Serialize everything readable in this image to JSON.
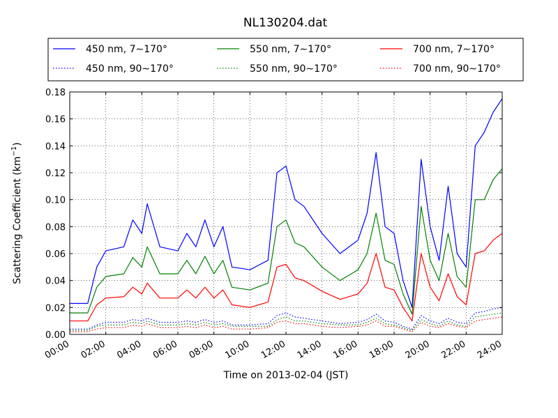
{
  "chart_data": {
    "type": "line",
    "title": "NL130204.dat",
    "xlabel": "Time on 2013-02-04 (JST)",
    "ylabel": "Scattering Coefficient (km",
    "ylabel_sup": "−1",
    "ylabel_close": ")",
    "x_unit": "hour",
    "xlim": [
      0,
      24
    ],
    "ylim": [
      0,
      0.18
    ],
    "grid": true,
    "legend_position": "top",
    "x_ticks": [
      {
        "value": 0,
        "label": "00:00"
      },
      {
        "value": 2,
        "label": "02:00"
      },
      {
        "value": 4,
        "label": "04:00"
      },
      {
        "value": 6,
        "label": "06:00"
      },
      {
        "value": 8,
        "label": "08:00"
      },
      {
        "value": 10,
        "label": "10:00"
      },
      {
        "value": 12,
        "label": "12:00"
      },
      {
        "value": 14,
        "label": "14:00"
      },
      {
        "value": 16,
        "label": "16:00"
      },
      {
        "value": 18,
        "label": "18:00"
      },
      {
        "value": 20,
        "label": "20:00"
      },
      {
        "value": 22,
        "label": "22:00"
      },
      {
        "value": 24,
        "label": "24:00"
      }
    ],
    "y_ticks": [
      {
        "value": 0.0,
        "label": "0.00"
      },
      {
        "value": 0.02,
        "label": "0.02"
      },
      {
        "value": 0.04,
        "label": "0.04"
      },
      {
        "value": 0.06,
        "label": "0.06"
      },
      {
        "value": 0.08,
        "label": "0.08"
      },
      {
        "value": 0.1,
        "label": "0.10"
      },
      {
        "value": 0.12,
        "label": "0.12"
      },
      {
        "value": 0.14,
        "label": "0.14"
      },
      {
        "value": 0.16,
        "label": "0.16"
      },
      {
        "value": 0.18,
        "label": "0.18"
      }
    ],
    "x": [
      0,
      1,
      1.5,
      2,
      3,
      3.5,
      4,
      4.3,
      5,
      6,
      6.5,
      7,
      7.5,
      8,
      8.5,
      9,
      10,
      11,
      11.5,
      12,
      12.5,
      13,
      14,
      15,
      16,
      16.5,
      17,
      17.5,
      18,
      18.5,
      19,
      19.5,
      20,
      20.5,
      21,
      21.5,
      22,
      22.5,
      23,
      23.5,
      24
    ],
    "series": [
      {
        "name": "450 nm, 7∼170°",
        "color": "#0000ff",
        "style": "solid",
        "values": [
          0.023,
          0.023,
          0.05,
          0.062,
          0.065,
          0.085,
          0.075,
          0.097,
          0.065,
          0.062,
          0.075,
          0.065,
          0.085,
          0.065,
          0.08,
          0.05,
          0.048,
          0.055,
          0.12,
          0.125,
          0.1,
          0.095,
          0.075,
          0.06,
          0.07,
          0.09,
          0.135,
          0.08,
          0.075,
          0.04,
          0.02,
          0.13,
          0.08,
          0.055,
          0.11,
          0.06,
          0.05,
          0.14,
          0.15,
          0.165,
          0.175
        ]
      },
      {
        "name": "550 nm, 7∼170°",
        "color": "#008000",
        "style": "solid",
        "values": [
          0.016,
          0.016,
          0.035,
          0.043,
          0.045,
          0.057,
          0.05,
          0.065,
          0.045,
          0.045,
          0.055,
          0.045,
          0.058,
          0.045,
          0.055,
          0.035,
          0.033,
          0.038,
          0.08,
          0.085,
          0.068,
          0.065,
          0.05,
          0.04,
          0.048,
          0.06,
          0.09,
          0.055,
          0.052,
          0.03,
          0.015,
          0.095,
          0.055,
          0.04,
          0.075,
          0.043,
          0.035,
          0.1,
          0.1,
          0.115,
          0.123
        ]
      },
      {
        "name": "700 nm, 7∼170°",
        "color": "#ff0000",
        "style": "solid",
        "values": [
          0.01,
          0.01,
          0.022,
          0.027,
          0.028,
          0.035,
          0.03,
          0.038,
          0.027,
          0.027,
          0.033,
          0.027,
          0.035,
          0.027,
          0.033,
          0.022,
          0.02,
          0.024,
          0.05,
          0.052,
          0.042,
          0.04,
          0.032,
          0.026,
          0.03,
          0.038,
          0.06,
          0.035,
          0.033,
          0.02,
          0.01,
          0.06,
          0.035,
          0.025,
          0.045,
          0.028,
          0.022,
          0.06,
          0.062,
          0.07,
          0.075
        ]
      },
      {
        "name": "450 nm, 90∼170°",
        "color": "#0000ff",
        "style": "dotted",
        "values": [
          0.004,
          0.004,
          0.007,
          0.009,
          0.009,
          0.011,
          0.01,
          0.012,
          0.009,
          0.009,
          0.01,
          0.009,
          0.011,
          0.009,
          0.01,
          0.007,
          0.007,
          0.008,
          0.014,
          0.016,
          0.013,
          0.012,
          0.01,
          0.008,
          0.009,
          0.011,
          0.015,
          0.01,
          0.009,
          0.006,
          0.004,
          0.014,
          0.01,
          0.008,
          0.012,
          0.009,
          0.008,
          0.016,
          0.017,
          0.019,
          0.02
        ]
      },
      {
        "name": "550 nm, 90∼170°",
        "color": "#008000",
        "style": "dotted",
        "values": [
          0.003,
          0.003,
          0.006,
          0.007,
          0.007,
          0.009,
          0.008,
          0.01,
          0.007,
          0.007,
          0.008,
          0.007,
          0.009,
          0.007,
          0.008,
          0.006,
          0.006,
          0.006,
          0.011,
          0.013,
          0.01,
          0.01,
          0.008,
          0.007,
          0.007,
          0.009,
          0.012,
          0.008,
          0.007,
          0.005,
          0.003,
          0.011,
          0.008,
          0.006,
          0.01,
          0.007,
          0.006,
          0.013,
          0.014,
          0.015,
          0.016
        ]
      },
      {
        "name": "700 nm, 90∼170°",
        "color": "#ff0000",
        "style": "dotted",
        "values": [
          0.002,
          0.002,
          0.004,
          0.005,
          0.005,
          0.007,
          0.006,
          0.008,
          0.005,
          0.005,
          0.006,
          0.005,
          0.007,
          0.005,
          0.006,
          0.004,
          0.004,
          0.005,
          0.009,
          0.01,
          0.008,
          0.008,
          0.006,
          0.005,
          0.006,
          0.007,
          0.01,
          0.006,
          0.006,
          0.004,
          0.002,
          0.009,
          0.006,
          0.005,
          0.008,
          0.006,
          0.005,
          0.01,
          0.011,
          0.012,
          0.013
        ]
      }
    ]
  }
}
